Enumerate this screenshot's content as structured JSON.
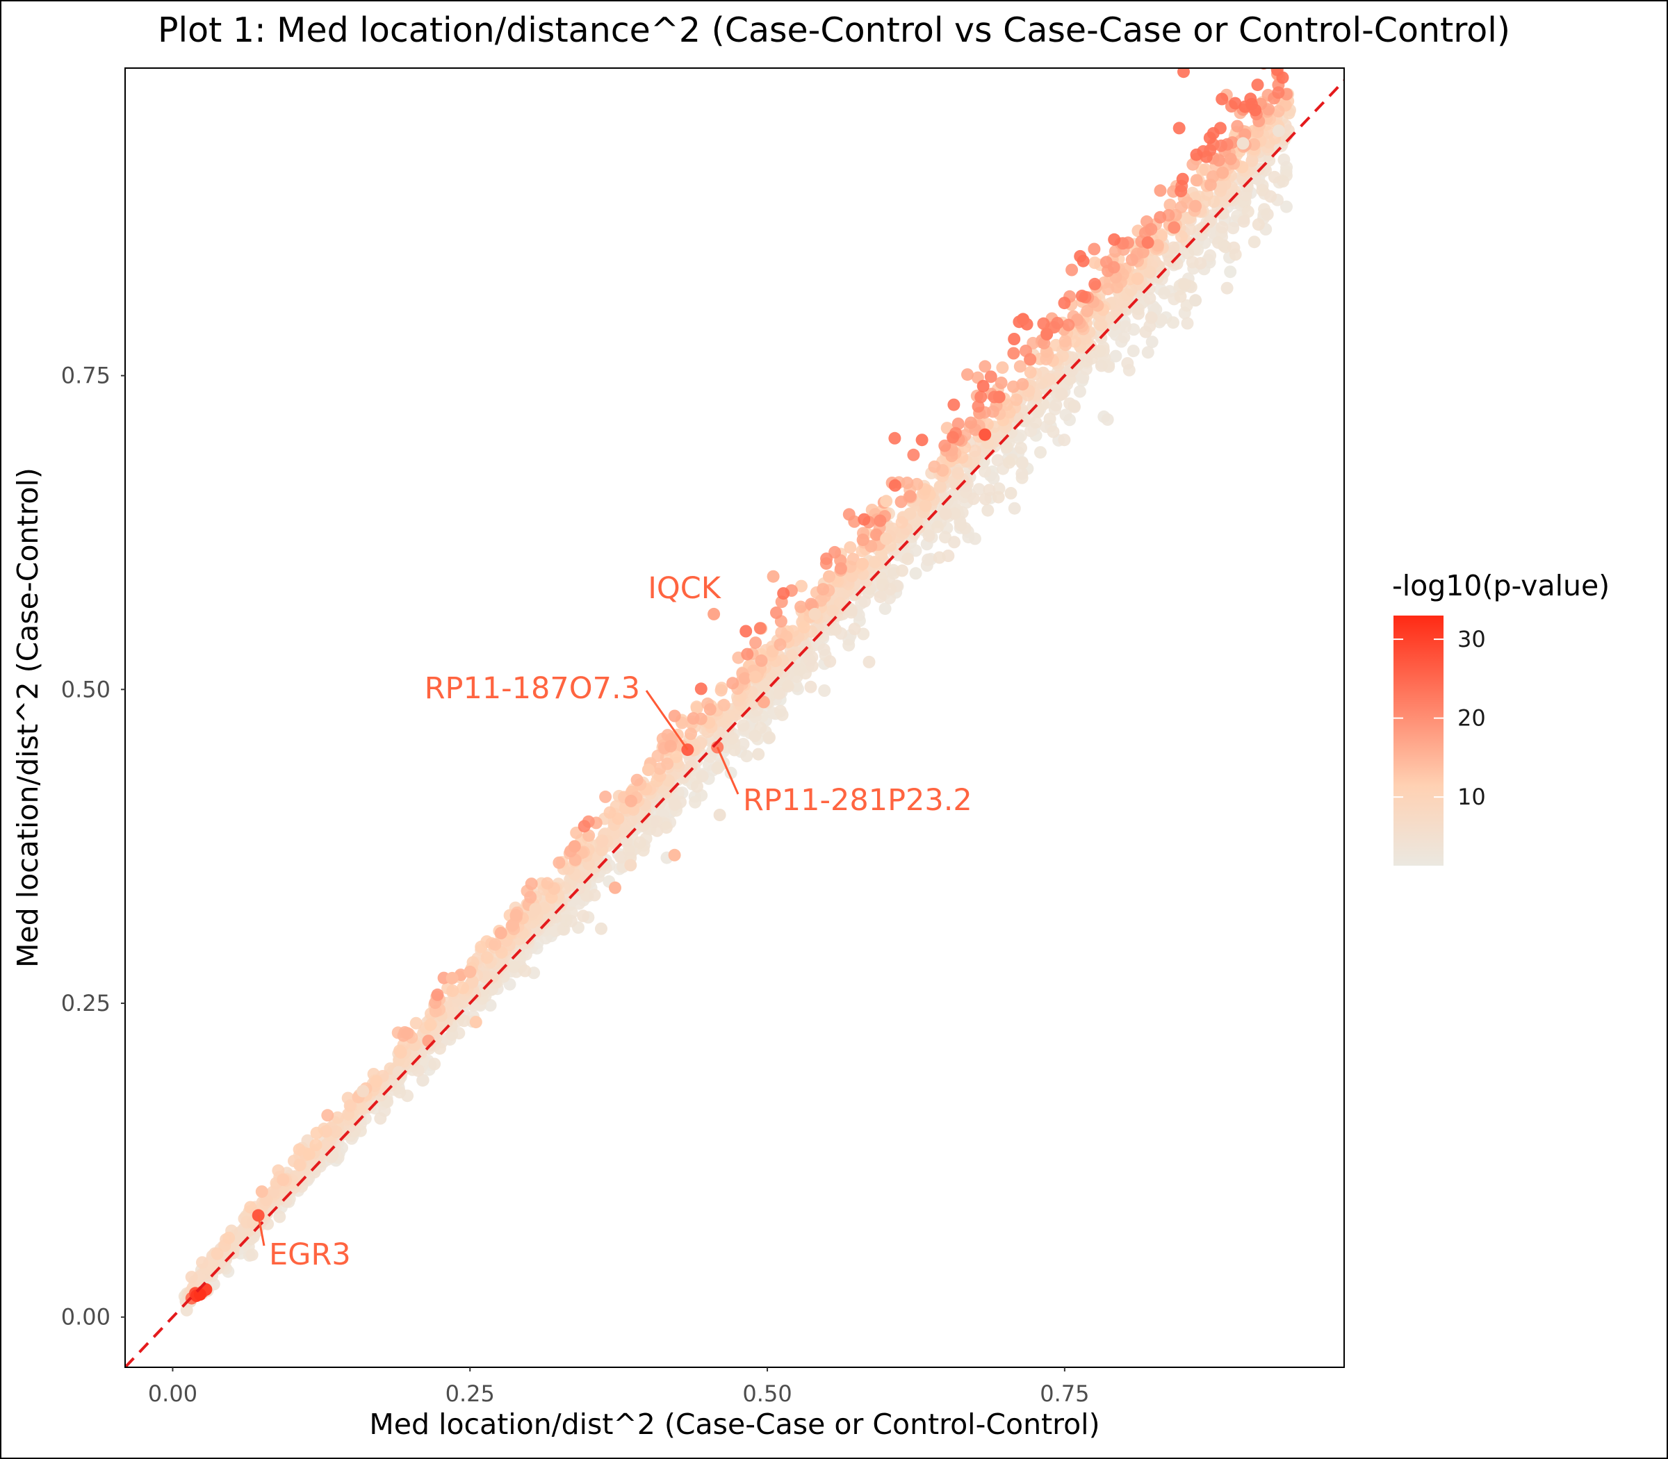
{
  "chart_data": {
    "type": "scatter",
    "title": "Plot 1: Med location/distance^2 (Case-Control vs Case-Case or Control-Control)",
    "xlabel": "Med location/dist^2 (Case-Case or Control-Control)",
    "ylabel": "Med location/dist^2 (Case-Control)",
    "xlim": [
      -0.04,
      0.985
    ],
    "ylim": [
      -0.04,
      0.995
    ],
    "x_ticks": [
      "0.00",
      "0.25",
      "0.50",
      "0.75"
    ],
    "y_ticks": [
      "0.00",
      "0.25",
      "0.50",
      "0.75"
    ],
    "x_tick_values": [
      0.0,
      0.25,
      0.5,
      0.75
    ],
    "y_tick_values": [
      0.0,
      0.25,
      0.5,
      0.75
    ],
    "reference_line": {
      "slope": 1,
      "intercept": 0,
      "style": "dashed",
      "color": "#e41a1c"
    },
    "grid": false,
    "legend": {
      "title": "-log10(p-value)",
      "position": "right",
      "ticks": [
        "10",
        "20",
        "30"
      ],
      "tick_values": [
        10,
        20,
        30
      ],
      "range": [
        1.3,
        33
      ],
      "color_low": "#ebe8e0",
      "color_mid": "#ffd1b3",
      "color_high": "#ff2a14"
    },
    "annotations": [
      {
        "label": "IQCK",
        "x": 0.455,
        "y": 0.56,
        "p": 17
      },
      {
        "label": "RP11-187O7.3",
        "x": 0.433,
        "y": 0.452,
        "p": 26
      },
      {
        "label": "RP11-281P23.2",
        "x": 0.458,
        "y": 0.454,
        "p": 22
      },
      {
        "label": "EGR3",
        "x": 0.072,
        "y": 0.081,
        "p": 27
      }
    ],
    "series": [
      {
        "points": [
          [
            0.02,
            0.017,
            31
          ],
          [
            0.023,
            0.018,
            32
          ],
          [
            0.028,
            0.022,
            30
          ],
          [
            0.016,
            0.015,
            24
          ],
          [
            0.019,
            0.019,
            28
          ],
          [
            0.025,
            0.02,
            26
          ],
          [
            0.075,
            0.1,
            13
          ],
          [
            0.235,
            0.27,
            14
          ],
          [
            0.255,
            0.235,
            12
          ],
          [
            0.305,
            0.325,
            9
          ],
          [
            0.338,
            0.375,
            16
          ],
          [
            0.4,
            0.436,
            12
          ],
          [
            0.422,
            0.368,
            14
          ],
          [
            0.372,
            0.342,
            15
          ],
          [
            0.497,
            0.49,
            16
          ],
          [
            0.505,
            0.59,
            15
          ],
          [
            0.552,
            0.59,
            13
          ],
          [
            0.6,
            0.65,
            11
          ],
          [
            0.683,
            0.703,
            27
          ],
          [
            0.695,
            0.733,
            22
          ],
          [
            0.715,
            0.795,
            23
          ],
          [
            0.735,
            0.783,
            22
          ],
          [
            0.82,
            0.856,
            22
          ],
          [
            0.842,
            0.868,
            20
          ],
          [
            0.86,
            0.885,
            15
          ],
          [
            0.9,
            0.935,
            5
          ],
          [
            0.86,
            0.81,
            3
          ],
          [
            0.93,
            0.945,
            4
          ],
          [
            0.25,
            0.275,
            14
          ],
          [
            0.215,
            0.22,
            17
          ],
          [
            0.46,
            0.4,
            4
          ],
          [
            0.49,
            0.51,
            12
          ],
          [
            0.54,
            0.56,
            8
          ],
          [
            0.62,
            0.64,
            9
          ],
          [
            0.385,
            0.36,
            7
          ],
          [
            0.19,
            0.195,
            6
          ],
          [
            0.6,
            0.62,
            10
          ],
          [
            0.65,
            0.64,
            5
          ],
          [
            0.16,
            0.18,
            7
          ],
          [
            0.58,
            0.6,
            12
          ]
        ]
      }
    ]
  }
}
